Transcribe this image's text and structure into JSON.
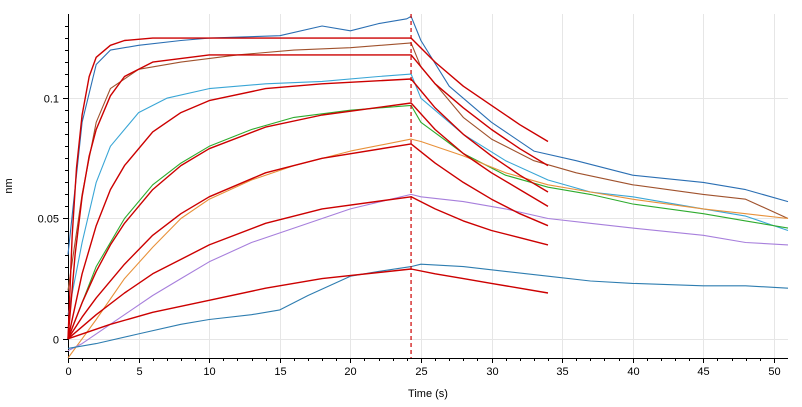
{
  "chart_data": {
    "type": "line",
    "xlabel": "Time (s)",
    "ylabel": "nm",
    "xlim": [
      0,
      51
    ],
    "ylim": [
      -0.008,
      0.135
    ],
    "x_ticks": [
      0,
      5,
      10,
      15,
      20,
      25,
      30,
      35,
      40,
      45,
      50
    ],
    "y_ticks": [
      0,
      0.05,
      0.1
    ],
    "y_tick_labels": [
      "0",
      "0.05",
      "0.1"
    ],
    "grid": true,
    "legend": "none",
    "vertical_marker": {
      "x": 24.3,
      "color": "#cc0000",
      "style": "dashed"
    },
    "fit_color": "#cc0000",
    "series": [
      {
        "color": "#2b6fb3",
        "x": [
          0,
          1,
          2,
          3,
          5,
          8,
          10,
          15,
          18,
          20,
          22,
          24,
          24.3,
          25,
          27,
          30,
          33,
          36,
          40,
          45,
          48,
          51
        ],
        "y": [
          0.035,
          0.09,
          0.114,
          0.12,
          0.122,
          0.124,
          0.125,
          0.126,
          0.13,
          0.128,
          0.131,
          0.133,
          0.134,
          0.124,
          0.105,
          0.09,
          0.078,
          0.074,
          0.068,
          0.065,
          0.062,
          0.057
        ]
      },
      {
        "color": "#a0522d",
        "x": [
          0,
          1,
          2,
          3,
          5,
          8,
          12,
          16,
          20,
          24.3,
          25,
          28,
          30,
          33,
          36,
          40,
          45,
          48,
          51
        ],
        "y": [
          0.02,
          0.06,
          0.09,
          0.104,
          0.112,
          0.115,
          0.118,
          0.12,
          0.121,
          0.123,
          0.113,
          0.092,
          0.083,
          0.074,
          0.069,
          0.064,
          0.06,
          0.058,
          0.05
        ]
      },
      {
        "color": "#3aa6d6",
        "x": [
          0,
          1,
          2,
          3,
          5,
          7,
          10,
          14,
          18,
          22,
          24.3,
          25,
          28,
          31,
          34,
          37,
          40,
          45,
          48,
          51
        ],
        "y": [
          0.01,
          0.04,
          0.065,
          0.08,
          0.094,
          0.1,
          0.104,
          0.106,
          0.107,
          0.109,
          0.11,
          0.1,
          0.085,
          0.074,
          0.066,
          0.061,
          0.059,
          0.054,
          0.051,
          0.045
        ]
      },
      {
        "color": "#2eab2e",
        "x": [
          0,
          1,
          2,
          4,
          6,
          8,
          10,
          13,
          16,
          20,
          24.3,
          25,
          28,
          31,
          34,
          37,
          40,
          45,
          48,
          51
        ],
        "y": [
          0.0,
          0.015,
          0.03,
          0.05,
          0.064,
          0.073,
          0.08,
          0.087,
          0.092,
          0.095,
          0.097,
          0.09,
          0.077,
          0.068,
          0.063,
          0.06,
          0.056,
          0.052,
          0.049,
          0.046
        ]
      },
      {
        "color": "#e8913a",
        "x": [
          0,
          1,
          2,
          4,
          6,
          8,
          10,
          13,
          16,
          20,
          24.3,
          25,
          28,
          31,
          34,
          37,
          40,
          45,
          48,
          51
        ],
        "y": [
          -0.008,
          0.0,
          0.008,
          0.025,
          0.038,
          0.05,
          0.058,
          0.066,
          0.072,
          0.078,
          0.083,
          0.082,
          0.076,
          0.069,
          0.064,
          0.061,
          0.058,
          0.054,
          0.052,
          0.05
        ]
      },
      {
        "color": "#a77fdc",
        "x": [
          0,
          1,
          2,
          4,
          6,
          8,
          10,
          13,
          16,
          20,
          24.3,
          25,
          28,
          31,
          34,
          37,
          40,
          45,
          48,
          51
        ],
        "y": [
          -0.005,
          -0.002,
          0.002,
          0.01,
          0.018,
          0.025,
          0.032,
          0.04,
          0.046,
          0.054,
          0.06,
          0.059,
          0.057,
          0.054,
          0.05,
          0.048,
          0.046,
          0.043,
          0.04,
          0.039
        ]
      },
      {
        "color": "#2e7db0",
        "x": [
          0,
          2,
          5,
          8,
          10,
          13,
          15,
          17,
          20,
          22,
          24.3,
          25,
          28,
          31,
          34,
          37,
          40,
          45,
          48,
          51
        ],
        "y": [
          -0.004,
          -0.002,
          0.002,
          0.006,
          0.008,
          0.01,
          0.012,
          0.018,
          0.026,
          0.028,
          0.03,
          0.031,
          0.03,
          0.028,
          0.026,
          0.024,
          0.023,
          0.022,
          0.022,
          0.021
        ]
      }
    ],
    "fits": [
      {
        "x": [
          0,
          0.3,
          0.6,
          1,
          1.5,
          2,
          3,
          4,
          6,
          10,
          15,
          24.3,
          26,
          28,
          30,
          32,
          34
        ],
        "y": [
          0,
          0.043,
          0.071,
          0.093,
          0.109,
          0.117,
          0.122,
          0.124,
          0.125,
          0.125,
          0.125,
          0.125,
          0.115,
          0.105,
          0.097,
          0.089,
          0.082
        ]
      },
      {
        "x": [
          0,
          0.5,
          1,
          1.5,
          2,
          3,
          4,
          6,
          10,
          15,
          24.3,
          26,
          28,
          30,
          32,
          34
        ],
        "y": [
          0,
          0.035,
          0.059,
          0.076,
          0.087,
          0.101,
          0.109,
          0.115,
          0.118,
          0.118,
          0.118,
          0.106,
          0.096,
          0.087,
          0.079,
          0.072
        ]
      },
      {
        "x": [
          0,
          1,
          2,
          3,
          4,
          6,
          8,
          10,
          14,
          18,
          24.3,
          26,
          28,
          30,
          32,
          34
        ],
        "y": [
          0,
          0.027,
          0.047,
          0.062,
          0.072,
          0.086,
          0.094,
          0.099,
          0.104,
          0.106,
          0.108,
          0.096,
          0.085,
          0.076,
          0.068,
          0.061
        ]
      },
      {
        "x": [
          0,
          1,
          2,
          3,
          4,
          6,
          8,
          10,
          14,
          18,
          24.3,
          26,
          28,
          30,
          32,
          34
        ],
        "y": [
          0,
          0.015,
          0.028,
          0.039,
          0.048,
          0.062,
          0.072,
          0.079,
          0.088,
          0.093,
          0.098,
          0.087,
          0.077,
          0.069,
          0.062,
          0.055
        ]
      },
      {
        "x": [
          0,
          1,
          2,
          4,
          6,
          8,
          10,
          14,
          18,
          24.3,
          26,
          28,
          30,
          32,
          34
        ],
        "y": [
          0,
          0.009,
          0.017,
          0.031,
          0.043,
          0.052,
          0.059,
          0.069,
          0.075,
          0.081,
          0.073,
          0.065,
          0.058,
          0.052,
          0.047
        ]
      },
      {
        "x": [
          0,
          2,
          4,
          6,
          8,
          10,
          14,
          18,
          24.3,
          26,
          28,
          30,
          32,
          34
        ],
        "y": [
          0,
          0.01,
          0.019,
          0.027,
          0.033,
          0.039,
          0.048,
          0.054,
          0.059,
          0.054,
          0.049,
          0.045,
          0.042,
          0.039
        ]
      },
      {
        "x": [
          0,
          3,
          6,
          10,
          14,
          18,
          24.3,
          26,
          28,
          30,
          32,
          34
        ],
        "y": [
          0,
          0.006,
          0.011,
          0.016,
          0.021,
          0.025,
          0.029,
          0.027,
          0.025,
          0.023,
          0.021,
          0.019
        ]
      }
    ]
  }
}
